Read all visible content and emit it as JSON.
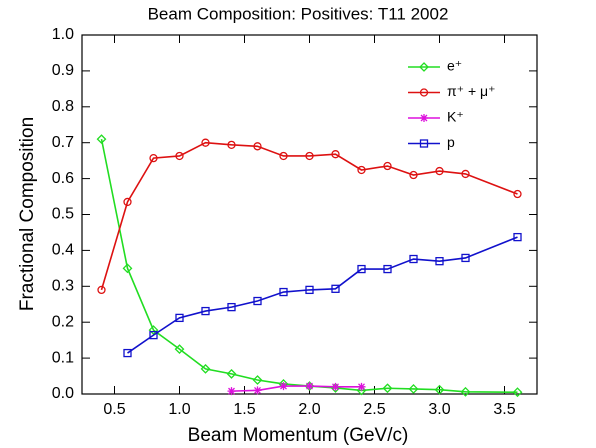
{
  "chart_data": {
    "type": "line",
    "title": "Beam Composition: Positives: T11 2002",
    "x_label": "Beam Momentum (GeV/c)",
    "y_label": "Fractional Composition",
    "x": [
      0.4,
      0.6,
      0.8,
      1.0,
      1.2,
      1.4,
      1.6,
      1.8,
      2.0,
      2.2,
      2.4,
      2.6,
      2.8,
      3.0,
      3.2,
      3.6
    ],
    "series": [
      {
        "name": "e⁺",
        "color": "#22dd22",
        "marker": "diamond",
        "values": [
          0.71,
          0.35,
          0.178,
          0.125,
          0.07,
          0.056,
          0.039,
          0.028,
          0.022,
          0.017,
          0.01,
          0.016,
          0.014,
          0.012,
          0.006,
          0.005
        ]
      },
      {
        "name": "π⁺ + μ⁺",
        "color": "#dd1111",
        "marker": "circle",
        "values": [
          0.29,
          0.535,
          0.657,
          0.663,
          0.7,
          0.694,
          0.69,
          0.663,
          0.663,
          0.668,
          0.624,
          0.635,
          0.61,
          0.621,
          0.613,
          0.557
        ]
      },
      {
        "name": "K⁺",
        "color": "#dd11dd",
        "marker": "star",
        "values": [
          null,
          null,
          null,
          null,
          null,
          0.008,
          0.01,
          0.022,
          0.022,
          0.02,
          0.02,
          null,
          null,
          null,
          null,
          null
        ]
      },
      {
        "name": "p",
        "color": "#1111cc",
        "marker": "square",
        "values": [
          null,
          0.114,
          0.164,
          0.212,
          0.231,
          0.242,
          0.259,
          0.284,
          0.29,
          0.293,
          0.348,
          0.348,
          0.376,
          0.37,
          0.379,
          0.437
        ]
      }
    ],
    "xlim": [
      0.25,
      3.75
    ],
    "xticks": [
      0.5,
      {
        "value": 1.0,
        "label": "1.0"
      },
      1.5,
      {
        "value": 2.0,
        "label": "2.0"
      },
      2.5,
      {
        "value": 3.0,
        "label": "3.0"
      },
      3.5
    ],
    "ylim": [
      0,
      1
    ],
    "yticks": [
      {
        "value": 0,
        "label": "0.0"
      },
      0.1,
      0.2,
      0.3,
      0.4,
      0.5,
      0.6,
      0.7,
      0.8,
      0.9,
      {
        "value": 1,
        "label": "1.0"
      }
    ],
    "grid": false,
    "legend": "top-right"
  }
}
